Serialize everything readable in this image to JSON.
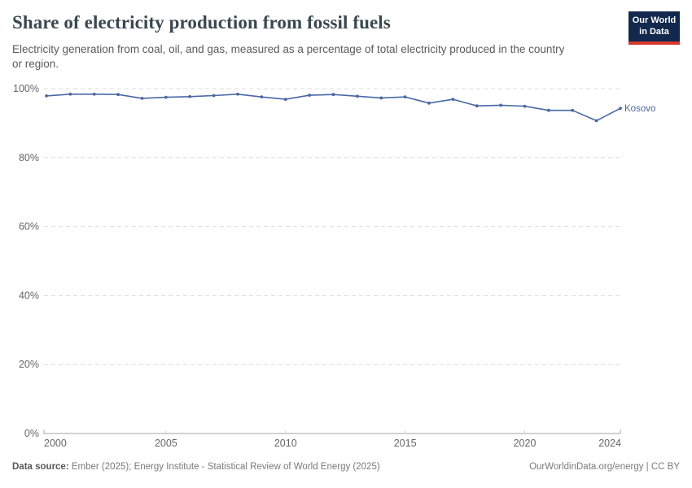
{
  "header": {
    "title": "Share of electricity production from fossil fuels",
    "subtitle": "Electricity generation from coal, oil, and gas, measured as a percentage of total electricity produced in the country or region.",
    "logo": {
      "line1": "Our World",
      "line2": "in Data"
    }
  },
  "chart_data": {
    "type": "line",
    "title": "Share of electricity production from fossil fuels",
    "xlabel": "",
    "ylabel": "",
    "x": [
      2000,
      2001,
      2002,
      2003,
      2004,
      2005,
      2006,
      2007,
      2008,
      2009,
      2010,
      2011,
      2012,
      2013,
      2014,
      2015,
      2016,
      2017,
      2018,
      2019,
      2020,
      2021,
      2022,
      2023,
      2024
    ],
    "series": [
      {
        "name": "Kosovo",
        "color": "#4a68a5",
        "values": [
          97.9,
          98.4,
          98.4,
          98.3,
          97.2,
          97.5,
          97.7,
          98.0,
          98.4,
          97.6,
          96.9,
          98.1,
          98.3,
          97.8,
          97.3,
          97.6,
          95.8,
          96.9,
          95.0,
          95.2,
          94.9,
          93.7,
          93.7,
          90.7,
          94.3
        ]
      }
    ],
    "x_ticks": [
      2000,
      2005,
      2010,
      2015,
      2020,
      2024
    ],
    "y_ticks": [
      0,
      20,
      40,
      60,
      80,
      100
    ],
    "y_tick_suffix": "%",
    "ylim": [
      0,
      100
    ],
    "xlim": [
      2000,
      2024
    ],
    "grid": "horizontal-dashed",
    "legend": "end-of-line-label"
  },
  "footer": {
    "source_label": "Data source:",
    "source_text": " Ember (2025); Energy Institute - Statistical Review of World Energy (2025)",
    "rights": "OurWorldinData.org/energy | CC BY"
  },
  "colors": {
    "accent_line": "#4a68a5",
    "grid": "#dddddd",
    "axis": "#a5a5a5",
    "tick": "#cccccc",
    "axis_text": "#666666",
    "title_text": "#3a474e",
    "logo_bg": "#12294d",
    "logo_stripe": "#d7382d"
  }
}
